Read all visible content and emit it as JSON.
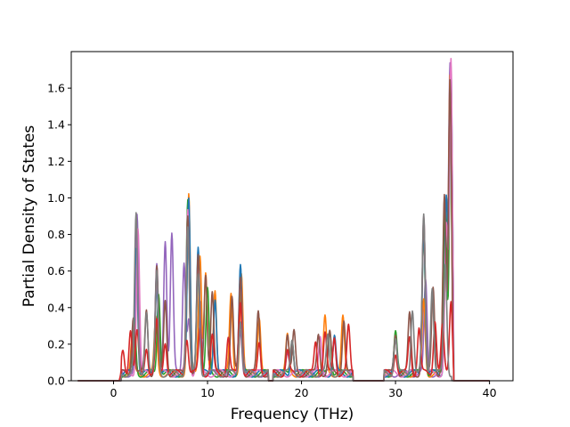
{
  "chart_data": {
    "type": "line",
    "xlabel": "Frequency (THz)",
    "ylabel": "Partial Density of States",
    "xlim": [
      -4.5,
      42.5
    ],
    "ylim": [
      0,
      1.8
    ],
    "xticks": [
      0,
      10,
      20,
      30,
      40
    ],
    "yticks": [
      0.0,
      0.2,
      0.4,
      0.6,
      0.8,
      1.0,
      1.2,
      1.4,
      1.6
    ],
    "ytick_labels": [
      "0.0",
      "0.2",
      "0.4",
      "0.6",
      "0.8",
      "1.0",
      "1.2",
      "1.4",
      "1.6"
    ],
    "grid": false,
    "x_start": -3.8,
    "x_end": 40.0,
    "series": [
      {
        "color": "#9467bd",
        "peaks": [
          [
            2.5,
            0.85
          ],
          [
            4.6,
            0.58
          ],
          [
            5.5,
            0.74
          ],
          [
            6.2,
            0.76
          ],
          [
            7.5,
            0.62
          ],
          [
            8.0,
            0.3
          ],
          [
            9.2,
            0.4
          ],
          [
            13.5,
            0.25
          ],
          [
            18.5,
            0.1
          ],
          [
            23.5,
            0.2
          ],
          [
            33.2,
            0.5
          ],
          [
            35.3,
            0.7
          ],
          [
            35.8,
            1.71
          ]
        ]
      },
      {
        "color": "#ff7f0e",
        "peaks": [
          [
            2.0,
            0.2
          ],
          [
            4.5,
            0.3
          ],
          [
            8.0,
            0.97
          ],
          [
            9.2,
            0.66
          ],
          [
            9.8,
            0.55
          ],
          [
            10.8,
            0.45
          ],
          [
            12.5,
            0.42
          ],
          [
            13.6,
            0.56
          ],
          [
            15.5,
            0.32
          ],
          [
            18.5,
            0.2
          ],
          [
            22.5,
            0.3
          ],
          [
            24.4,
            0.3
          ],
          [
            30.0,
            0.2
          ],
          [
            33.0,
            0.4
          ],
          [
            35.2,
            0.9
          ],
          [
            35.8,
            1.65
          ]
        ]
      },
      {
        "color": "#2ca02c",
        "peaks": [
          [
            2.2,
            0.3
          ],
          [
            4.8,
            0.45
          ],
          [
            7.9,
            0.93
          ],
          [
            9.0,
            0.6
          ],
          [
            10.0,
            0.45
          ],
          [
            13.5,
            0.5
          ],
          [
            19.0,
            0.2
          ],
          [
            23.0,
            0.25
          ],
          [
            30.0,
            0.22
          ],
          [
            33.0,
            0.78
          ],
          [
            35.3,
            0.93
          ],
          [
            35.9,
            1.6
          ]
        ]
      },
      {
        "color": "#1f77b4",
        "peaks": [
          [
            2.4,
            0.7
          ],
          [
            4.6,
            0.5
          ],
          [
            8.0,
            0.95
          ],
          [
            9.0,
            0.7
          ],
          [
            10.8,
            0.42
          ],
          [
            13.5,
            0.58
          ],
          [
            19.0,
            0.18
          ],
          [
            23.5,
            0.2
          ],
          [
            30.0,
            0.18
          ],
          [
            33.0,
            0.8
          ],
          [
            35.4,
            0.97
          ],
          [
            35.9,
            1.65
          ]
        ]
      },
      {
        "color": "#e377c2",
        "peaks": [
          [
            2.6,
            0.8
          ],
          [
            4.6,
            0.55
          ],
          [
            7.9,
            0.9
          ],
          [
            9.0,
            0.62
          ],
          [
            13.5,
            0.5
          ],
          [
            22.0,
            0.2
          ],
          [
            33.0,
            0.87
          ],
          [
            35.4,
            0.8
          ],
          [
            35.9,
            1.7
          ]
        ]
      },
      {
        "color": "#8c564b",
        "peaks": [
          [
            2.1,
            0.32
          ],
          [
            3.5,
            0.35
          ],
          [
            4.6,
            0.58
          ],
          [
            5.5,
            0.4
          ],
          [
            7.9,
            0.88
          ],
          [
            9.0,
            0.63
          ],
          [
            9.8,
            0.55
          ],
          [
            10.5,
            0.45
          ],
          [
            12.6,
            0.42
          ],
          [
            13.5,
            0.52
          ],
          [
            15.4,
            0.33
          ],
          [
            18.5,
            0.22
          ],
          [
            19.2,
            0.22
          ],
          [
            21.8,
            0.22
          ],
          [
            23.0,
            0.22
          ],
          [
            24.5,
            0.3
          ],
          [
            30.0,
            0.22
          ],
          [
            31.5,
            0.32
          ],
          [
            33.0,
            0.84
          ],
          [
            34.0,
            0.48
          ],
          [
            35.2,
            0.96
          ],
          [
            35.8,
            1.6
          ]
        ]
      },
      {
        "color": "#d62728",
        "peaks": [
          [
            1.0,
            0.12
          ],
          [
            1.8,
            0.25
          ],
          [
            2.5,
            0.22
          ],
          [
            3.5,
            0.15
          ],
          [
            4.6,
            0.28
          ],
          [
            5.5,
            0.18
          ],
          [
            7.8,
            0.2
          ],
          [
            9.2,
            0.25
          ],
          [
            10.5,
            0.2
          ],
          [
            12.2,
            0.2
          ],
          [
            13.5,
            0.4
          ],
          [
            15.5,
            0.18
          ],
          [
            18.5,
            0.12
          ],
          [
            21.5,
            0.18
          ],
          [
            22.5,
            0.22
          ],
          [
            23.5,
            0.2
          ],
          [
            25.0,
            0.25
          ],
          [
            30.0,
            0.12
          ],
          [
            31.5,
            0.2
          ],
          [
            32.5,
            0.25
          ],
          [
            34.2,
            0.3
          ],
          [
            35.0,
            0.25
          ],
          [
            35.9,
            0.41
          ]
        ]
      },
      {
        "color": "#7f7f7f",
        "peaks": [
          [
            2.4,
            0.86
          ],
          [
            3.5,
            0.35
          ],
          [
            4.6,
            0.55
          ],
          [
            7.9,
            0.8
          ],
          [
            9.0,
            0.55
          ],
          [
            13.5,
            0.3
          ],
          [
            19.0,
            0.18
          ],
          [
            22.8,
            0.2
          ],
          [
            30.0,
            0.2
          ],
          [
            31.8,
            0.36
          ],
          [
            33.0,
            0.86
          ],
          [
            33.9,
            0.48
          ],
          [
            35.3,
            0.6
          ]
        ]
      }
    ]
  }
}
